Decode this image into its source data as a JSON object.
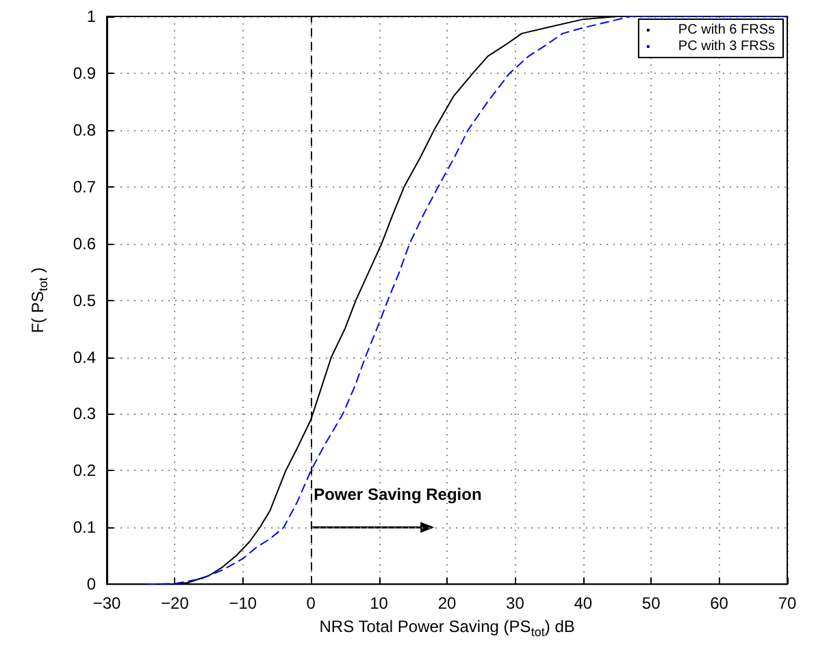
{
  "chart_data": {
    "type": "line",
    "xlabel": "NRS Total Power Saving (PS$_{tot}$) dB",
    "ylabel": "F( PS$_{tot}$ )",
    "xlim": [
      -30,
      70
    ],
    "xticks": [
      -30,
      -20,
      -10,
      0,
      10,
      20,
      30,
      40,
      50,
      60,
      70
    ],
    "ylim": [
      0,
      1
    ],
    "yticks": [
      0,
      0.1,
      0.2,
      0.3,
      0.4,
      0.5,
      0.6,
      0.7,
      0.8,
      0.9,
      1
    ],
    "grid": true,
    "legend": "top right",
    "marker": "none",
    "series": [
      {
        "name": "PC with 6 FRSs",
        "color": "#000000",
        "line_style": "solid",
        "x": [
          -20,
          -18,
          -15,
          -13,
          -11,
          -9,
          -7.5,
          -6,
          -3.7,
          -2,
          0,
          1.5,
          3,
          5,
          6.6,
          8.5,
          10.4,
          12,
          13.7,
          16,
          18.1,
          21,
          23.8,
          26,
          28.6,
          31,
          34.6,
          40,
          45,
          70
        ],
        "values": [
          0,
          0.003,
          0.015,
          0.03,
          0.05,
          0.075,
          0.1,
          0.13,
          0.2,
          0.24,
          0.29,
          0.345,
          0.4,
          0.45,
          0.5,
          0.55,
          0.6,
          0.65,
          0.7,
          0.75,
          0.8,
          0.86,
          0.9,
          0.93,
          0.95,
          0.97,
          0.98,
          0.995,
          1,
          1
        ]
      },
      {
        "name": "PC with 3 FRSs",
        "color": "#0000ff",
        "line_style": "dashed",
        "x": [
          -24,
          -20,
          -16,
          -13,
          -10,
          -8,
          -6,
          -4,
          -2,
          0,
          2,
          4.7,
          6.5,
          8,
          9.7,
          11.3,
          13,
          14.5,
          16.5,
          18.7,
          21,
          23.1,
          26,
          29.2,
          32,
          34.6,
          37,
          40,
          47,
          70
        ],
        "values": [
          0,
          0.001,
          0.01,
          0.025,
          0.045,
          0.065,
          0.08,
          0.1,
          0.145,
          0.2,
          0.245,
          0.3,
          0.35,
          0.4,
          0.45,
          0.5,
          0.55,
          0.6,
          0.65,
          0.7,
          0.75,
          0.8,
          0.85,
          0.9,
          0.93,
          0.95,
          0.97,
          0.98,
          1,
          1
        ]
      }
    ],
    "ref_lines": [
      {
        "axis": "x",
        "value": 0,
        "label": "Power Saving Region",
        "color": "#000000",
        "line_style": "dashed"
      }
    ]
  }
}
